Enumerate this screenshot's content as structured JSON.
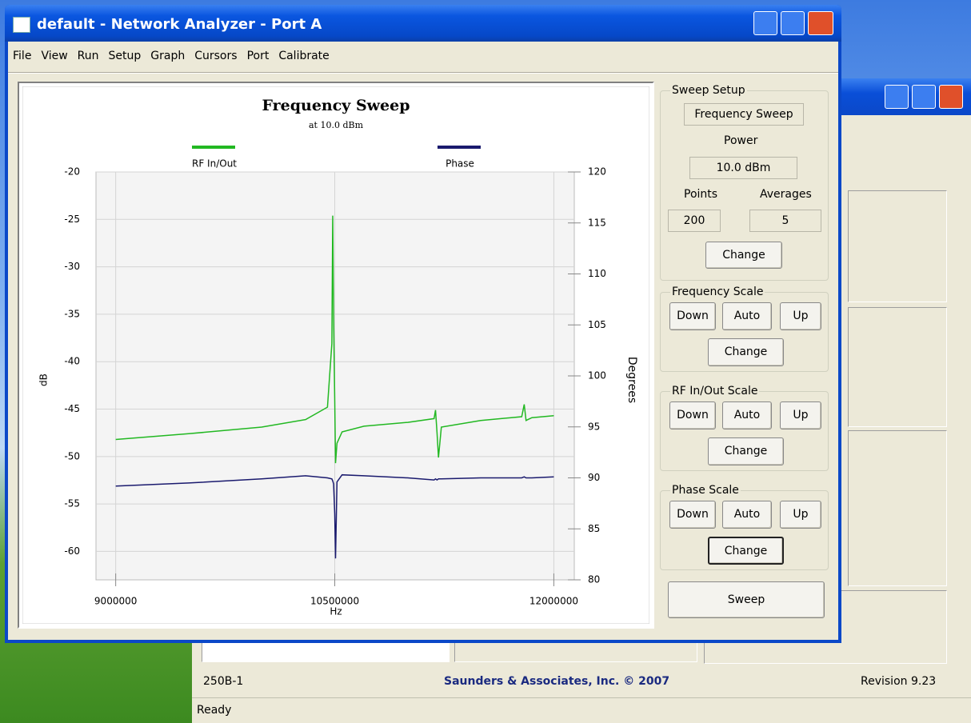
{
  "window": {
    "title": "default - Network Analyzer - Port A",
    "menu": [
      "File",
      "View",
      "Run",
      "Setup",
      "Graph",
      "Cursors",
      "Port",
      "Calibrate"
    ]
  },
  "chart_data": {
    "type": "line",
    "title": "Frequency Sweep",
    "subtitle": "at 10.0 dBm",
    "x_label": "Hz",
    "y_label": "dB",
    "y2_label": "Degrees",
    "x": [
      9000000,
      9500000,
      10000000,
      10300000,
      10450000,
      10480000,
      10486000,
      10492000,
      10500000,
      10505000,
      10515000,
      10550000,
      10700000,
      11000000,
      11180000,
      11190000,
      11200000,
      11210000,
      11230000,
      11500000,
      11780000,
      11797000,
      11810000,
      11850000,
      12000000
    ],
    "series": [
      {
        "name": "RF In/Out",
        "color": "#22b822",
        "values": [
          -48.2,
          -47.6,
          -46.9,
          -46.1,
          -44.8,
          -38.1,
          -24.6,
          -35.6,
          -44.0,
          -50.7,
          -48.6,
          -47.4,
          -46.8,
          -46.4,
          -46.0,
          -45.1,
          -47.5,
          -50.1,
          -46.9,
          -46.2,
          -45.8,
          -44.5,
          -46.2,
          -45.9,
          -45.7
        ]
      },
      {
        "name": "Phase",
        "color": "#1a1a6e",
        "axis": "y2",
        "values": [
          89.2,
          89.5,
          89.9,
          90.2,
          90.0,
          89.9,
          89.7,
          89.4,
          86.5,
          82.1,
          89.6,
          90.3,
          90.2,
          90.0,
          89.8,
          89.9,
          89.8,
          89.9,
          89.9,
          90.0,
          90.0,
          90.1,
          90.0,
          90.0,
          90.1
        ]
      }
    ],
    "xlim": [
      8865000,
      12140000
    ],
    "xticks": [
      9000000,
      10500000,
      12000000
    ],
    "ylim": [
      -63,
      -20
    ],
    "yticks": [
      -20,
      -25,
      -30,
      -35,
      -40,
      -45,
      -50,
      -55,
      -60
    ],
    "y2lim": [
      80,
      120
    ],
    "y2ticks": [
      80,
      85,
      90,
      95,
      100,
      105,
      110,
      115,
      120
    ],
    "grid": true
  },
  "panel": {
    "sweep_setup": {
      "title": "Sweep Setup",
      "mode": "Frequency Sweep",
      "power_label": "Power",
      "power": "10.0 dBm",
      "points_label": "Points",
      "points": 200,
      "averages_label": "Averages",
      "averages": 5,
      "button": "Change"
    },
    "frequency_scale": {
      "title": "Frequency Scale",
      "buttons": [
        "Down",
        "Auto",
        "Up",
        "Change"
      ]
    },
    "rf_scale": {
      "title": "RF In/Out Scale",
      "buttons": [
        "Down",
        "Auto",
        "Up",
        "Change"
      ]
    },
    "phase_scale": {
      "title": "Phase Scale",
      "buttons": [
        "Down",
        "Auto",
        "Up",
        "Change"
      ]
    },
    "sweep_button": "Sweep"
  },
  "background_window": {
    "model": "250B-1",
    "company": "Saunders & Associates, Inc. © 2007",
    "revision": "Revision 9.23",
    "status": "Ready"
  }
}
